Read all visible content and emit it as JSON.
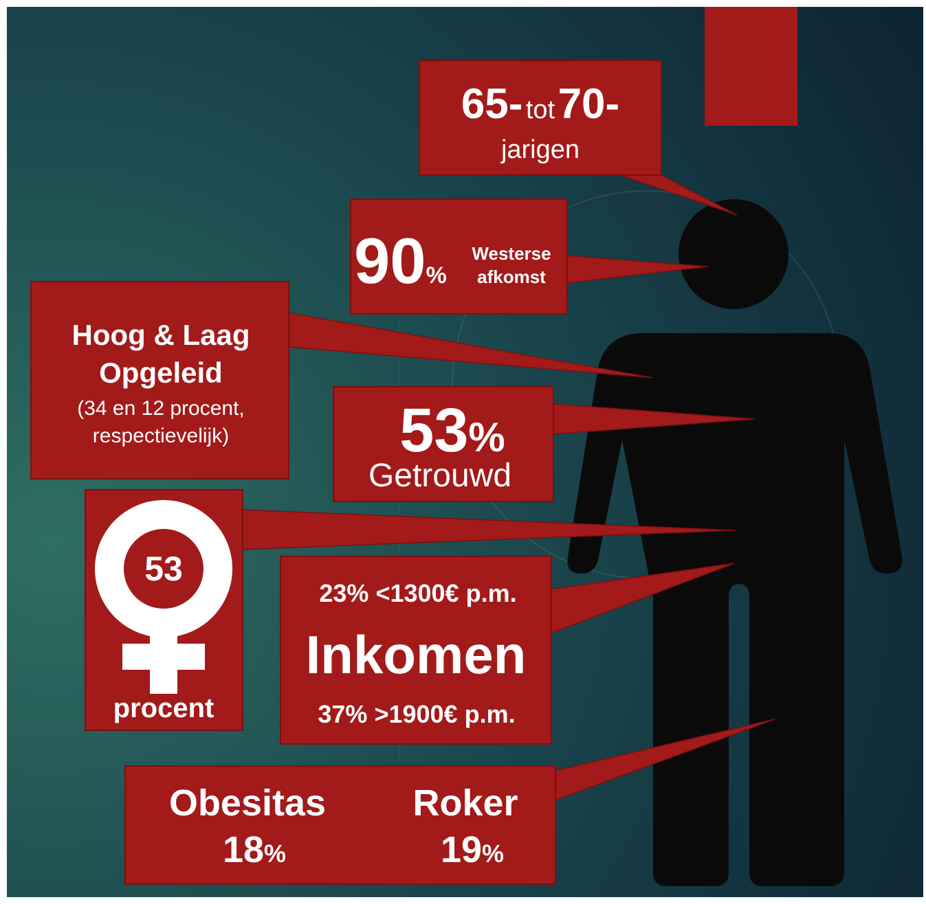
{
  "age": {
    "from": "65-",
    "joiner": "tot",
    "to": "70-",
    "label": "jarigen"
  },
  "origin": {
    "value": "90",
    "unit": "%",
    "lines": [
      "Westerse",
      "afkomst"
    ]
  },
  "education": {
    "title_lines": [
      "Hoog & Laag",
      "Opgeleid"
    ],
    "note_lines": [
      "(34 en 12 procent,",
      "respectievelijk)"
    ]
  },
  "married": {
    "value": "53",
    "unit": "%",
    "label": "Getrouwd"
  },
  "female": {
    "value": "53",
    "label": "procent"
  },
  "income": {
    "low": "23% <1300€ p.m.",
    "title": "Inkomen",
    "high": "37% >1900€ p.m."
  },
  "health": [
    {
      "label": "Obesitas",
      "value": "18",
      "unit": "%"
    },
    {
      "label": "Roker",
      "value": "19",
      "unit": "%"
    }
  ]
}
